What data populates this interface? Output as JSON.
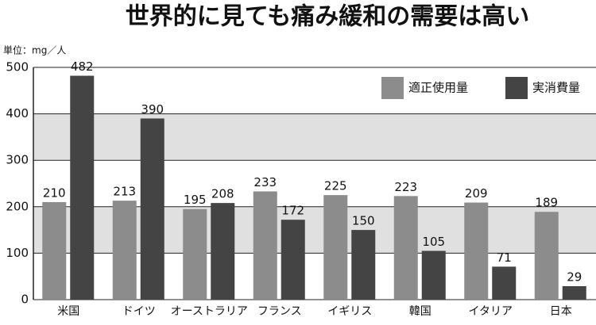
{
  "chart_data": {
    "type": "bar",
    "title": "世界的に見ても痛み緩和の需要は高い",
    "unit_label": "単位：mg／人",
    "categories": [
      "米国",
      "ドイツ",
      "オーストラリア",
      "フランス",
      "イギリス",
      "韓国",
      "イタリア",
      "日本"
    ],
    "series": [
      {
        "name": "適正使用量",
        "color": "#8c8c8c",
        "values": [
          210,
          213,
          195,
          233,
          225,
          223,
          209,
          189
        ]
      },
      {
        "name": "実消費量",
        "color": "#444444",
        "values": [
          482,
          390,
          208,
          172,
          150,
          105,
          71,
          29
        ]
      }
    ],
    "ylim": [
      0,
      500
    ],
    "yticks": [
      0,
      100,
      200,
      300,
      400,
      500
    ],
    "grid": true,
    "legend": "top-right"
  }
}
